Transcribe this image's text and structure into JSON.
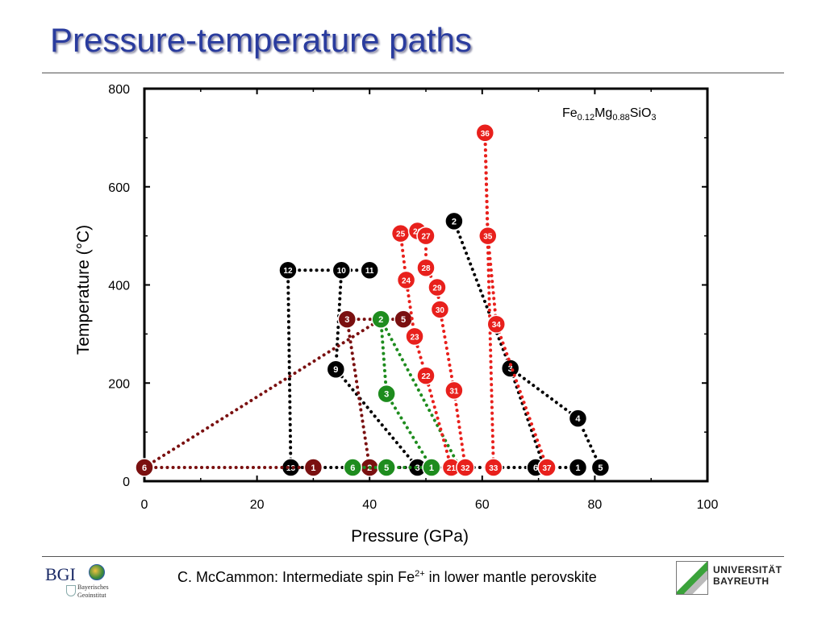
{
  "slide": {
    "title": "Pressure-temperature paths",
    "footer_prefix": "C. McCammon: Intermediate spin Fe",
    "footer_sup": "2+",
    "footer_suffix": " in lower mantle perovskite"
  },
  "logos": {
    "bgi_text": "BGI",
    "bgi_sub1": "Bayerisches",
    "bgi_sub2": "Geoinstitut",
    "ub_line1": "UNIVERSITÄT",
    "ub_line2": "BAYREUTH"
  },
  "colors": {
    "title": "#2a3c9e",
    "black": "#000000",
    "red": "#e8201c",
    "green": "#1e8c1e",
    "darkred": "#7a1010"
  },
  "chart_data": {
    "type": "scatter",
    "xlabel": "Pressure (GPa)",
    "ylabel": "Temperature (°C)",
    "xlim": [
      0,
      100
    ],
    "ylim": [
      0,
      800
    ],
    "xticks": [
      0,
      20,
      40,
      60,
      80,
      100
    ],
    "yticks": [
      0,
      200,
      400,
      600,
      800
    ],
    "annotation": {
      "parts": [
        [
          "Fe",
          ""
        ],
        [
          "0.12",
          "sub"
        ],
        [
          "Mg",
          ""
        ],
        [
          "0.88",
          "sub"
        ],
        [
          "SiO",
          ""
        ],
        [
          "3",
          "sub"
        ]
      ]
    },
    "series": [
      {
        "color_key": "black",
        "segments": [
          [
            [
              25.5,
              430
            ],
            [
              26,
              28
            ]
          ],
          [
            [
              25.5,
              430
            ],
            [
              40,
              430
            ]
          ],
          [
            [
              35,
              430
            ],
            [
              34,
              228
            ],
            [
              48.5,
              28
            ]
          ],
          [
            [
              26,
              28
            ],
            [
              77,
              28
            ]
          ],
          [
            [
              55,
              530
            ],
            [
              65,
              230
            ],
            [
              71,
              28
            ]
          ],
          [
            [
              65,
              230
            ],
            [
              77,
              128
            ],
            [
              81,
              28
            ]
          ]
        ],
        "points": [
          {
            "label": "12",
            "x": 25.5,
            "y": 430
          },
          {
            "label": "10",
            "x": 35,
            "y": 430
          },
          {
            "label": "11",
            "x": 40,
            "y": 430
          },
          {
            "label": "9",
            "x": 34,
            "y": 228
          },
          {
            "label": "13",
            "x": 26,
            "y": 28
          },
          {
            "label": "3",
            "x": 48.5,
            "y": 28
          },
          {
            "label": "2",
            "x": 55,
            "y": 530
          },
          {
            "label": "3",
            "x": 65,
            "y": 230
          },
          {
            "label": "4",
            "x": 77,
            "y": 128
          },
          {
            "label": "6",
            "x": 69.5,
            "y": 28
          },
          {
            "label": "1",
            "x": 77,
            "y": 28
          },
          {
            "label": "5",
            "x": 81,
            "y": 28
          }
        ]
      },
      {
        "color_key": "darkred",
        "segments": [
          [
            [
              0,
              28
            ],
            [
              42,
              330
            ]
          ],
          [
            [
              36,
              330
            ],
            [
              46,
              330
            ]
          ],
          [
            [
              36,
              330
            ],
            [
              40,
              28
            ]
          ],
          [
            [
              0,
              28
            ],
            [
              30,
              28
            ]
          ]
        ],
        "points": [
          {
            "label": "6",
            "x": 0,
            "y": 28
          },
          {
            "label": "1",
            "x": 30,
            "y": 28
          },
          {
            "label": "3",
            "x": 36,
            "y": 330
          },
          {
            "label": "5",
            "x": 46,
            "y": 330
          },
          {
            "label": "2",
            "x": 40,
            "y": 28
          }
        ]
      },
      {
        "color_key": "green",
        "segments": [
          [
            [
              42,
              330
            ],
            [
              43,
              178
            ],
            [
              51,
              28
            ]
          ],
          [
            [
              42,
              330
            ],
            [
              56,
              28
            ]
          ],
          [
            [
              37,
              28
            ],
            [
              56,
              28
            ]
          ]
        ],
        "points": [
          {
            "label": "2",
            "x": 42,
            "y": 330
          },
          {
            "label": "3",
            "x": 43,
            "y": 178
          },
          {
            "label": "6",
            "x": 37,
            "y": 28
          },
          {
            "label": "5",
            "x": 43,
            "y": 28
          },
          {
            "label": "1",
            "x": 51,
            "y": 28
          }
        ]
      },
      {
        "color_key": "red",
        "segments": [
          [
            [
              45.5,
              505
            ],
            [
              46.5,
              410
            ],
            [
              48,
              295
            ],
            [
              50,
              215
            ],
            [
              54.5,
              28
            ]
          ],
          [
            [
              48.5,
              510
            ],
            [
              50,
              500
            ],
            [
              50,
              435
            ],
            [
              52,
              395
            ],
            [
              52.5,
              350
            ],
            [
              55,
              185
            ],
            [
              57,
              28
            ]
          ],
          [
            [
              60.5,
              710
            ],
            [
              61,
              500
            ],
            [
              62.5,
              320
            ],
            [
              71.5,
              28
            ]
          ],
          [
            [
              60.5,
              710
            ],
            [
              62,
              28
            ]
          ]
        ],
        "points": [
          {
            "label": "36",
            "x": 60.5,
            "y": 710
          },
          {
            "label": "25",
            "x": 45.5,
            "y": 505
          },
          {
            "label": "26",
            "x": 48.5,
            "y": 510
          },
          {
            "label": "27",
            "x": 50,
            "y": 500
          },
          {
            "label": "28",
            "x": 50,
            "y": 435
          },
          {
            "label": "24",
            "x": 46.5,
            "y": 410
          },
          {
            "label": "29",
            "x": 52,
            "y": 395
          },
          {
            "label": "30",
            "x": 52.5,
            "y": 350
          },
          {
            "label": "23",
            "x": 48,
            "y": 295
          },
          {
            "label": "22",
            "x": 50,
            "y": 215
          },
          {
            "label": "31",
            "x": 55,
            "y": 185
          },
          {
            "label": "35",
            "x": 61,
            "y": 500
          },
          {
            "label": "34",
            "x": 62.5,
            "y": 320
          },
          {
            "label": "21",
            "x": 54.5,
            "y": 28
          },
          {
            "label": "32",
            "x": 57,
            "y": 28
          },
          {
            "label": "33",
            "x": 62,
            "y": 28
          },
          {
            "label": "37",
            "x": 71.5,
            "y": 28
          }
        ]
      }
    ]
  }
}
